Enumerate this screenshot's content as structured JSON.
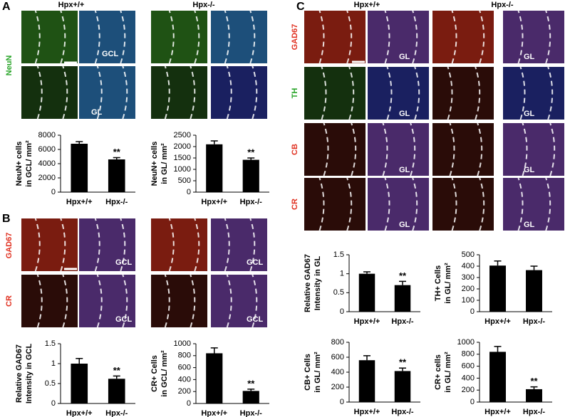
{
  "panels": [
    {
      "label": "A",
      "headers": [
        "Hpx+/+",
        "Hpx-/-"
      ],
      "stains": [
        "NeuN"
      ],
      "region_labels": [
        "GCL",
        "GL"
      ]
    },
    {
      "label": "B",
      "stains": [
        "GAD67",
        "CR"
      ],
      "region_labels": [
        "GCL",
        "GCL",
        "GCL",
        "GCL"
      ]
    },
    {
      "label": "C",
      "headers": [
        "Hpx+/+",
        "Hpx-/-"
      ],
      "stains": [
        "GAD67",
        "TH",
        "CB",
        "CR"
      ],
      "region_labels": [
        "GL",
        "GL",
        "GL",
        "GL",
        "GL",
        "GL",
        "GL",
        "GL"
      ]
    }
  ],
  "chart_data": [
    {
      "type": "bar",
      "ylabel": [
        "NeuN+ cells",
        "in GCL/ mm²"
      ],
      "categories": [
        "Hpx+/+",
        "Hpx-/-"
      ],
      "values": [
        6800,
        4600
      ],
      "error": [
        300,
        250
      ],
      "significance": [
        null,
        "**"
      ],
      "color": "#000000",
      "ylim": [
        0,
        8000
      ],
      "yticks": [
        0,
        2000,
        4000,
        6000,
        8000
      ]
    },
    {
      "type": "bar",
      "ylabel": [
        "NeuN+ cells",
        "in GL/ mm²"
      ],
      "categories": [
        "Hpx+/+",
        "Hpx-/-"
      ],
      "values": [
        2100,
        1420
      ],
      "error": [
        150,
        80
      ],
      "significance": [
        null,
        "**"
      ],
      "color": "#000000",
      "ylim": [
        0,
        2500
      ],
      "yticks": [
        0,
        500,
        1000,
        1500,
        2000,
        2500
      ]
    },
    {
      "type": "bar",
      "ylabel": [
        "Relative GAD67",
        "Intensity in GCL"
      ],
      "categories": [
        "Hpx+/+",
        "Hpx-/-"
      ],
      "values": [
        1.0,
        0.62
      ],
      "error": [
        0.13,
        0.07
      ],
      "significance": [
        null,
        "**"
      ],
      "color": "#000000",
      "ylim": [
        0,
        1.5
      ],
      "yticks": [
        0,
        0.5,
        1,
        1.5
      ]
    },
    {
      "type": "bar",
      "ylabel": [
        "CR+ Cells",
        "in GCL/ mm²"
      ],
      "categories": [
        "Hpx+/+",
        "Hpx-/-"
      ],
      "values": [
        840,
        210
      ],
      "error": [
        90,
        30
      ],
      "significance": [
        null,
        "**"
      ],
      "color": "#000000",
      "ylim": [
        0,
        1000
      ],
      "yticks": [
        0,
        200,
        400,
        600,
        800,
        1000
      ]
    },
    {
      "type": "bar",
      "ylabel": [
        "Relative GAD67",
        "Intensity in GL"
      ],
      "categories": [
        "Hpx+/+",
        "Hpx-/-"
      ],
      "values": [
        1.0,
        0.7
      ],
      "error": [
        0.05,
        0.1
      ],
      "significance": [
        null,
        "**"
      ],
      "color": "#000000",
      "ylim": [
        0,
        1.5
      ],
      "yticks": [
        0,
        0.5,
        1,
        1.5
      ]
    },
    {
      "type": "bar",
      "ylabel": [
        "TH+ Cells",
        "in GL/ mm²"
      ],
      "categories": [
        "Hpx+/+",
        "Hpx-/-"
      ],
      "values": [
        405,
        365
      ],
      "error": [
        40,
        35
      ],
      "color": "#000000",
      "ylim": [
        0,
        500
      ],
      "yticks": [
        0,
        100,
        200,
        300,
        400,
        500
      ]
    },
    {
      "type": "bar",
      "ylabel": [
        "CB+ Cells",
        "in GL/ mm²"
      ],
      "categories": [
        "Hpx+/+",
        "Hpx-/-"
      ],
      "values": [
        560,
        415
      ],
      "error": [
        60,
        40
      ],
      "significance": [
        null,
        "**"
      ],
      "color": "#000000",
      "ylim": [
        0,
        800
      ],
      "yticks": [
        0,
        200,
        400,
        600,
        800
      ]
    },
    {
      "type": "bar",
      "ylabel": [
        "CR+ cells",
        "in GL/ mm²"
      ],
      "categories": [
        "Hpx+/+",
        "Hpx-/-"
      ],
      "values": [
        840,
        215
      ],
      "error": [
        90,
        40
      ],
      "significance": [
        null,
        "**"
      ],
      "color": "#000000",
      "ylim": [
        0,
        1000
      ],
      "yticks": [
        0,
        200,
        400,
        600,
        800,
        1000
      ]
    }
  ]
}
